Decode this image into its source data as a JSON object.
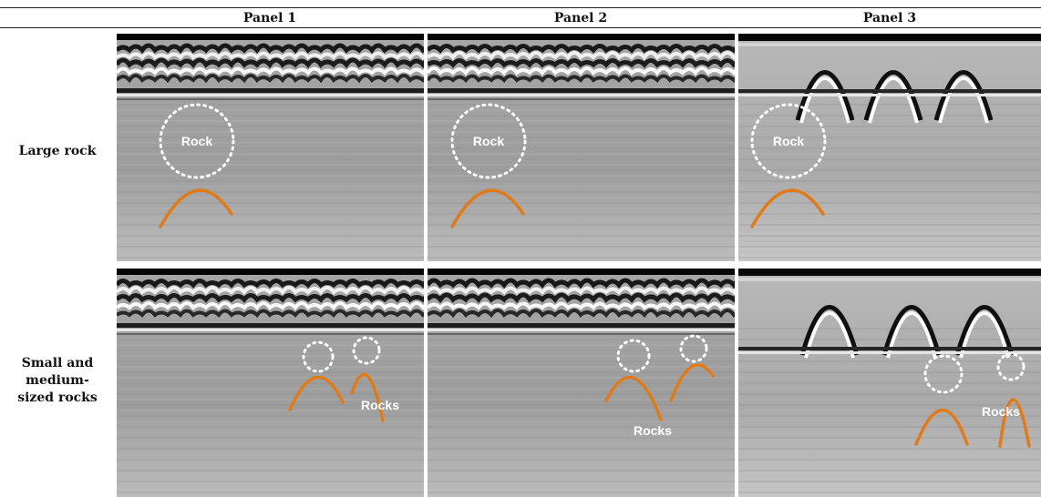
{
  "headers": {
    "panel1": "Panel 1",
    "panel2": "Panel 2",
    "panel3": "Panel 3"
  },
  "rows": {
    "large": "Large rock",
    "small": "Small and\nmedium-\nsized rocks"
  },
  "annotations": {
    "rock": "Rock",
    "rocks": "Rocks"
  },
  "colors": {
    "hyperbola": "#e07b1a",
    "marker": "#ffffff"
  }
}
